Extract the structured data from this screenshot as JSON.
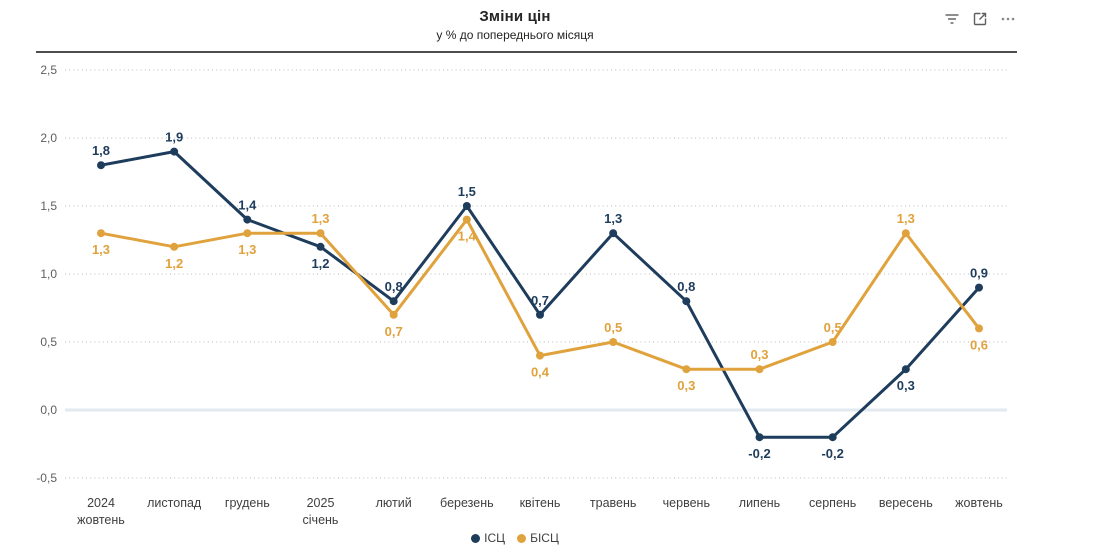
{
  "header": {
    "title": "Зміни цін",
    "subtitle": "у % до попереднього місяця",
    "toolbar_icons": [
      "filter",
      "focus-mode",
      "more-options"
    ]
  },
  "chart_data": {
    "type": "line",
    "title": "Зміни цін",
    "subtitle": "у % до попереднього місяця",
    "categories": [
      [
        "2024",
        "жовтень"
      ],
      [
        "листопад"
      ],
      [
        "грудень"
      ],
      [
        "2025",
        "січень"
      ],
      [
        "лютий"
      ],
      [
        "березень"
      ],
      [
        "квітень"
      ],
      [
        "травень"
      ],
      [
        "червень"
      ],
      [
        "липень"
      ],
      [
        "серпень"
      ],
      [
        "вересень"
      ],
      [
        "жовтень"
      ]
    ],
    "y_axis": {
      "min": -0.5,
      "max": 2.5,
      "step": 0.5,
      "tick_labels": [
        "2,5",
        "2,0",
        "1,5",
        "1,0",
        "0,5",
        "0,0",
        "-0,5"
      ]
    },
    "grid": "dotted-horizontal",
    "zero_line": true,
    "legend_position": "bottom-center",
    "series": [
      {
        "name": "ІСЦ",
        "color": "#1e3c5c",
        "values": [
          1.8,
          1.9,
          1.4,
          1.2,
          0.8,
          1.5,
          0.7,
          1.3,
          0.8,
          -0.2,
          -0.2,
          0.3,
          0.9
        ],
        "labels": [
          "1,8",
          "1,9",
          "1,4",
          "1,2",
          "0,8",
          "1,5",
          "0,7",
          "1,3",
          "0,8",
          "-0,2",
          "-0,2",
          "0,3",
          "0,9"
        ],
        "label_pos": [
          "above",
          "above",
          "above",
          "below",
          "above",
          "above",
          "above",
          "above",
          "above",
          "below",
          "below",
          "below",
          "above"
        ]
      },
      {
        "name": "БІСЦ",
        "color": "#e0a23c",
        "values": [
          1.3,
          1.2,
          1.3,
          1.3,
          0.7,
          1.4,
          0.4,
          0.5,
          0.3,
          0.3,
          0.5,
          1.3,
          0.6
        ],
        "labels": [
          "1,3",
          "1,2",
          "1,3",
          "1,3",
          "0,7",
          "1,4",
          "0,4",
          "0,5",
          "0,3",
          "0,3",
          "0,5",
          "1,3",
          "0,6"
        ],
        "label_pos": [
          "below",
          "below",
          "below",
          "above",
          "below",
          "below",
          "below",
          "above",
          "below",
          "above",
          "above",
          "above",
          "below"
        ]
      }
    ],
    "colors": {
      "grid_dotted": "#d2d2d2",
      "zero_line": "#e2e9f1",
      "y_tick_text": "#605e5c",
      "x_tick_text": "#3f3f3f",
      "header_rule": "#4d4d4d",
      "icon": "#605e5c"
    }
  }
}
